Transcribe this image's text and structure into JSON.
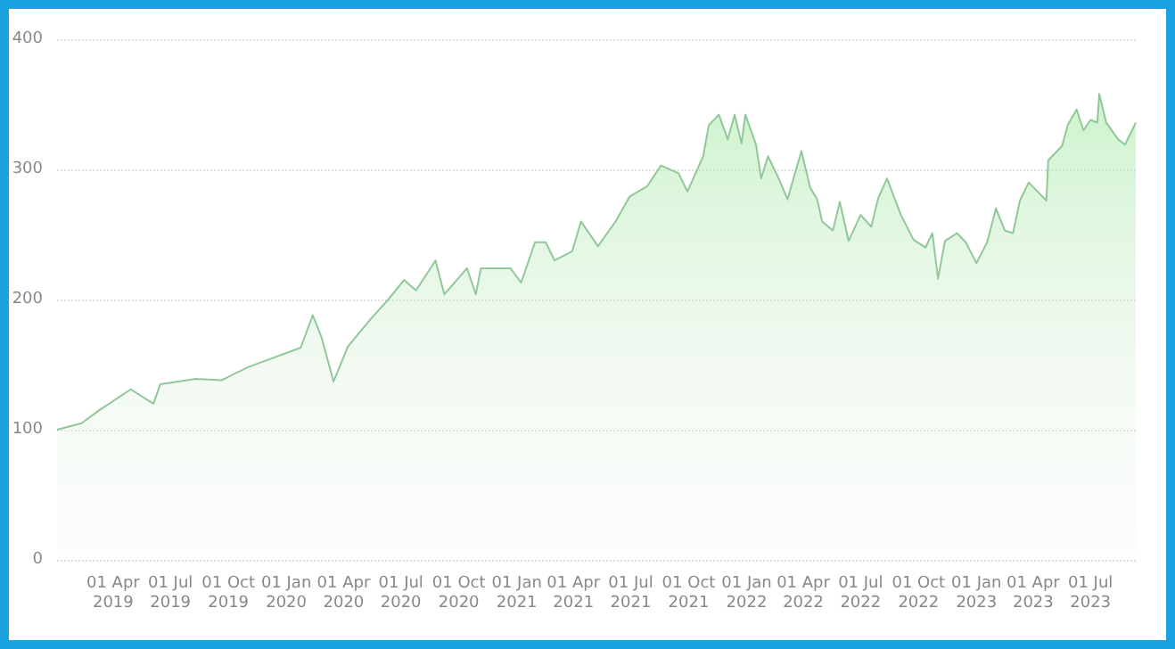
{
  "chart_data": {
    "type": "area",
    "x": [
      "2019-01-02",
      "2019-02-10",
      "2019-03-10",
      "2019-04-29",
      "2019-06-04",
      "2019-06-15",
      "2019-08-10",
      "2019-09-20",
      "2019-11-01",
      "2020-01-24",
      "2020-02-12",
      "2020-02-26",
      "2020-03-16",
      "2020-04-08",
      "2020-05-14",
      "2020-06-11",
      "2020-07-06",
      "2020-07-25",
      "2020-08-25",
      "2020-09-08",
      "2020-10-14",
      "2020-10-28",
      "2020-11-05",
      "2020-12-22",
      "2021-01-08",
      "2021-01-30",
      "2021-02-16",
      "2021-03-02",
      "2021-03-30",
      "2021-04-13",
      "2021-05-10",
      "2021-06-07",
      "2021-06-29",
      "2021-07-27",
      "2021-08-18",
      "2021-09-15",
      "2021-09-29",
      "2021-10-24",
      "2021-11-02",
      "2021-11-18",
      "2021-12-02",
      "2021-12-13",
      "2021-12-24",
      "2021-12-30",
      "2022-01-16",
      "2022-01-24",
      "2022-02-04",
      "2022-02-21",
      "2022-03-07",
      "2022-03-29",
      "2022-04-12",
      "2022-04-23",
      "2022-05-01",
      "2022-05-18",
      "2022-05-29",
      "2022-06-12",
      "2022-07-01",
      "2022-07-18",
      "2022-07-29",
      "2022-08-12",
      "2022-09-03",
      "2022-09-23",
      "2022-10-12",
      "2022-10-23",
      "2022-11-01",
      "2022-11-12",
      "2022-12-01",
      "2022-12-15",
      "2023-01-01",
      "2023-01-18",
      "2023-02-01",
      "2023-02-15",
      "2023-02-28",
      "2023-03-11",
      "2023-03-25",
      "2023-04-22",
      "2023-04-25",
      "2023-05-17",
      "2023-05-26",
      "2023-06-09",
      "2023-06-20",
      "2023-07-01",
      "2023-07-12",
      "2023-07-15",
      "2023-07-26",
      "2023-08-14",
      "2023-08-25",
      "2023-09-11"
    ],
    "series": [
      {
        "color": "#90c89a",
        "values": [
          100,
          105,
          115,
          131,
          120,
          135,
          139,
          138,
          148,
          163,
          188,
          171,
          137,
          164,
          185,
          200,
          215,
          207,
          230,
          204,
          224,
          204,
          224,
          224,
          213,
          244,
          244,
          230,
          237,
          260,
          241,
          260,
          279,
          287,
          303,
          297,
          283,
          310,
          334,
          342,
          323,
          342,
          320,
          342,
          319,
          293,
          310,
          293,
          277,
          314,
          286,
          277,
          260,
          253,
          275,
          245,
          265,
          256,
          278,
          293,
          265,
          246,
          240,
          251,
          216,
          245,
          251,
          244,
          228,
          244,
          270,
          253,
          251,
          276,
          290,
          276,
          307,
          318,
          334,
          346,
          330,
          338,
          336,
          358,
          336,
          323,
          319,
          336
        ]
      }
    ],
    "xlim": [
      "2019-01-02",
      "2023-09-11"
    ],
    "xticks": [
      {
        "value": "2019-04-01",
        "label": "01 Apr 2019"
      },
      {
        "value": "2019-07-01",
        "label": "01 Jul 2019"
      },
      {
        "value": "2019-10-01",
        "label": "01 Oct 2019"
      },
      {
        "value": "2020-01-01",
        "label": "01 Jan 2020"
      },
      {
        "value": "2020-04-01",
        "label": "01 Apr 2020"
      },
      {
        "value": "2020-07-01",
        "label": "01 Jul 2020"
      },
      {
        "value": "2020-10-01",
        "label": "01 Oct 2020"
      },
      {
        "value": "2021-01-01",
        "label": "01 Jan 2021"
      },
      {
        "value": "2021-04-01",
        "label": "01 Apr 2021"
      },
      {
        "value": "2021-07-01",
        "label": "01 Jul 2021"
      },
      {
        "value": "2021-10-01",
        "label": "01 Oct 2021"
      },
      {
        "value": "2022-01-01",
        "label": "01 Jan 2022"
      },
      {
        "value": "2022-04-01",
        "label": "01 Apr 2022"
      },
      {
        "value": "2022-07-01",
        "label": "01 Jul 2022"
      },
      {
        "value": "2022-10-01",
        "label": "01 Oct 2022"
      },
      {
        "value": "2023-01-01",
        "label": "01 Jan 2023"
      },
      {
        "value": "2023-04-01",
        "label": "01 Apr 2023"
      },
      {
        "value": "2023-07-01",
        "label": "01 Jul 2023"
      }
    ],
    "ylim": [
      0,
      400
    ],
    "yticks": [
      0,
      100,
      200,
      300,
      400
    ],
    "grid": "y",
    "marker": "none"
  }
}
